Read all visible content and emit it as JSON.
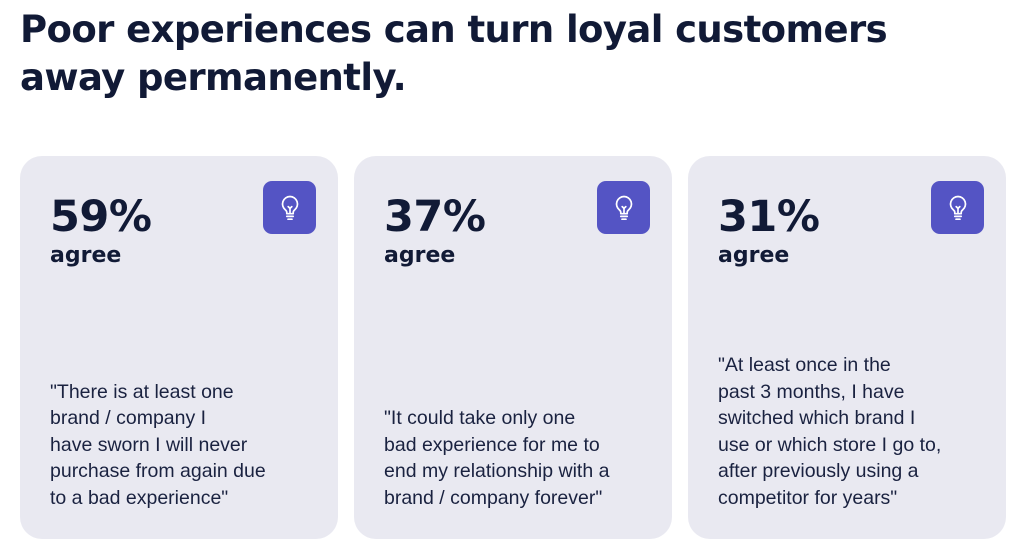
{
  "title": {
    "line1": "Poor experiences can turn loyal customers",
    "line2": "away permanently."
  },
  "colors": {
    "title_text": "#111a36",
    "card_background": "#e9e9f1",
    "icon_badge": "#5454c4",
    "icon_glyph": "#ffffff"
  },
  "cards": [
    {
      "icon": "lightbulb-icon",
      "percent": "59%",
      "unit": "agree",
      "quote_lines": [
        "\"There is at least one",
        "brand / company I",
        "have sworn I will never",
        "purchase from again due",
        "to a bad experience\""
      ]
    },
    {
      "icon": "lightbulb-icon",
      "percent": "37%",
      "unit": "agree",
      "quote_lines": [
        "\"It could take only one",
        "bad experience for me to",
        "end my relationship with a",
        "brand / company forever\""
      ]
    },
    {
      "icon": "lightbulb-icon",
      "percent": "31%",
      "unit": "agree",
      "quote_lines": [
        "\"At least once in the",
        "past 3 months, I have",
        "switched which brand I",
        "use or which store I go to,",
        "after previously using a",
        "competitor for years\""
      ]
    }
  ]
}
